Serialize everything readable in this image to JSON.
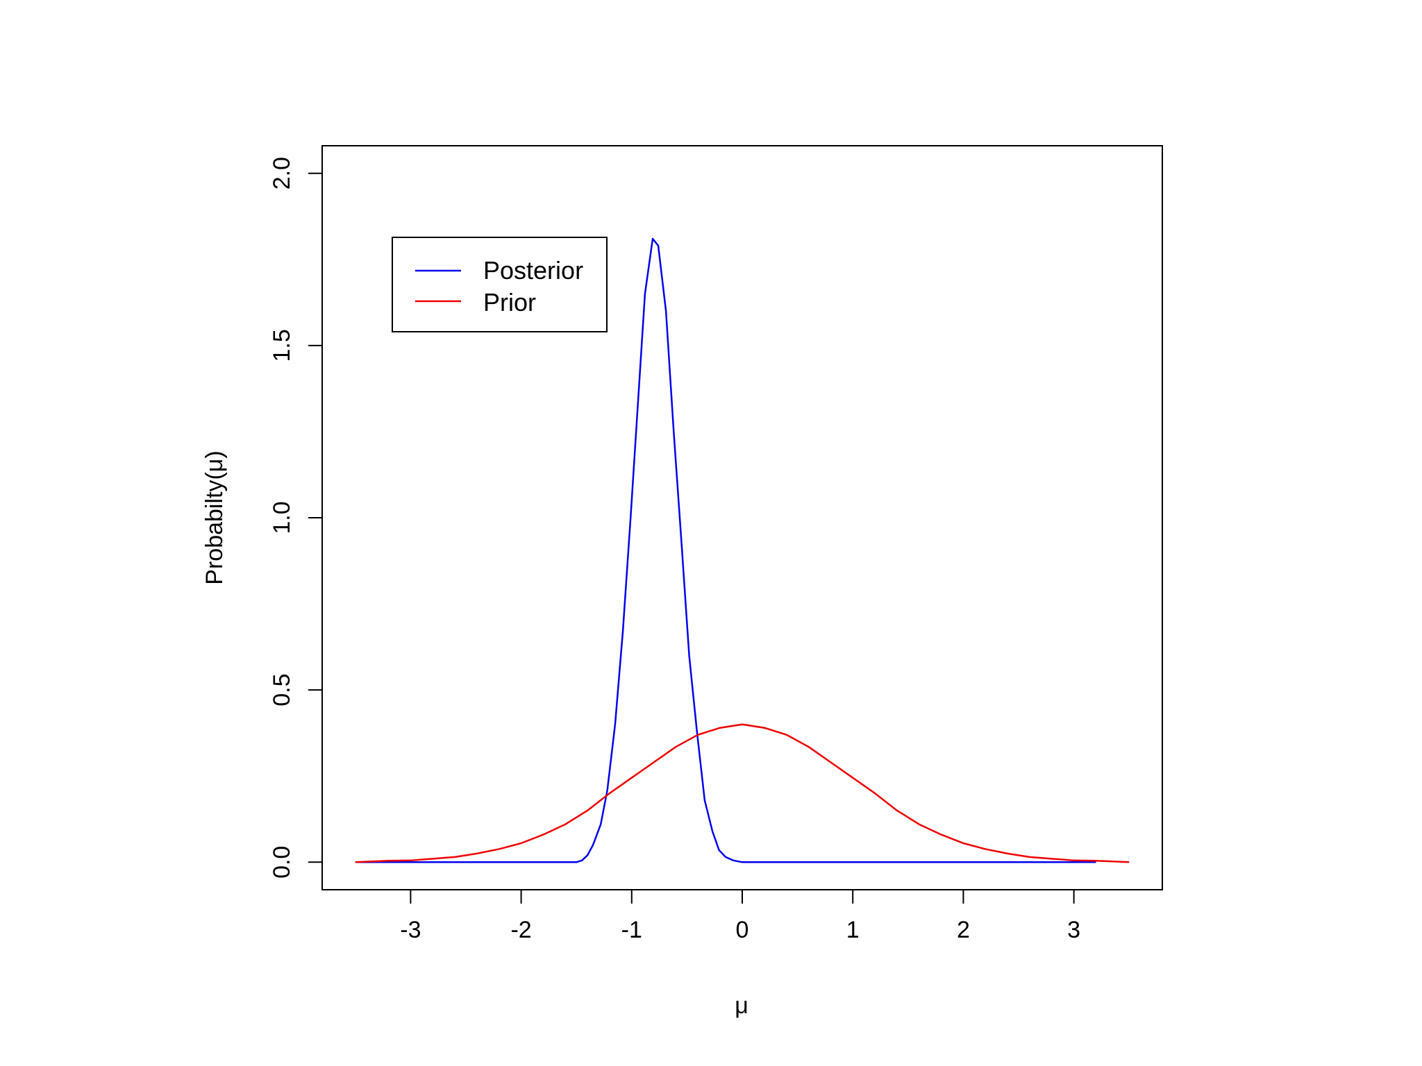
{
  "chart_data": {
    "type": "line",
    "xlabel": "μ",
    "ylabel": "Probabilty(μ)",
    "xlim": [
      -3.8,
      3.8
    ],
    "ylim": [
      -0.08,
      2.08
    ],
    "xticks": [
      -3,
      -2,
      -1,
      0,
      1,
      2,
      3
    ],
    "xtick_labels": [
      "-3",
      "-2",
      "-1",
      "0",
      "1",
      "2",
      "3"
    ],
    "yticks": [
      0,
      0.5,
      1,
      1.5,
      2
    ],
    "ytick_labels": [
      "0.0",
      "0.5",
      "1.0",
      "1.5",
      "2.0"
    ],
    "grid": false,
    "legend_position": "top-left",
    "series": [
      {
        "name": "Posterior",
        "color": "#0000ee",
        "points": [
          [
            -3.5,
            0
          ],
          [
            -2.0,
            0
          ],
          [
            -1.5,
            0
          ],
          [
            -1.45,
            0.005
          ],
          [
            -1.4,
            0.02
          ],
          [
            -1.35,
            0.05
          ],
          [
            -1.28,
            0.11
          ],
          [
            -1.22,
            0.21
          ],
          [
            -1.15,
            0.4
          ],
          [
            -1.08,
            0.67
          ],
          [
            -1.01,
            1.0
          ],
          [
            -0.95,
            1.3
          ],
          [
            -0.88,
            1.65
          ],
          [
            -0.81,
            1.81
          ],
          [
            -0.76,
            1.79
          ],
          [
            -0.69,
            1.6
          ],
          [
            -0.62,
            1.25
          ],
          [
            -0.55,
            0.93
          ],
          [
            -0.48,
            0.6
          ],
          [
            -0.41,
            0.38
          ],
          [
            -0.34,
            0.18
          ],
          [
            -0.27,
            0.09
          ],
          [
            -0.21,
            0.035
          ],
          [
            -0.15,
            0.015
          ],
          [
            -0.08,
            0.005
          ],
          [
            0.0,
            0
          ],
          [
            1.0,
            0
          ],
          [
            2.0,
            0
          ],
          [
            3.2,
            0
          ]
        ]
      },
      {
        "name": "Prior",
        "color": "#ee0000",
        "points": [
          [
            -3.5,
            0
          ],
          [
            -3.2,
            0.004
          ],
          [
            -3.0,
            0.005
          ],
          [
            -2.8,
            0.01
          ],
          [
            -2.6,
            0.015
          ],
          [
            -2.4,
            0.025
          ],
          [
            -2.2,
            0.038
          ],
          [
            -2.0,
            0.055
          ],
          [
            -1.8,
            0.08
          ],
          [
            -1.6,
            0.11
          ],
          [
            -1.4,
            0.15
          ],
          [
            -1.2,
            0.2
          ],
          [
            -1.0,
            0.245
          ],
          [
            -0.8,
            0.29
          ],
          [
            -0.6,
            0.335
          ],
          [
            -0.4,
            0.37
          ],
          [
            -0.2,
            0.39
          ],
          [
            0.0,
            0.4
          ],
          [
            0.2,
            0.39
          ],
          [
            0.4,
            0.37
          ],
          [
            0.6,
            0.335
          ],
          [
            0.8,
            0.29
          ],
          [
            1.0,
            0.245
          ],
          [
            1.2,
            0.2
          ],
          [
            1.4,
            0.15
          ],
          [
            1.6,
            0.11
          ],
          [
            1.8,
            0.08
          ],
          [
            2.0,
            0.055
          ],
          [
            2.2,
            0.038
          ],
          [
            2.4,
            0.025
          ],
          [
            2.6,
            0.015
          ],
          [
            2.8,
            0.01
          ],
          [
            3.0,
            0.005
          ],
          [
            3.2,
            0.004
          ],
          [
            3.5,
            0
          ]
        ]
      }
    ]
  }
}
